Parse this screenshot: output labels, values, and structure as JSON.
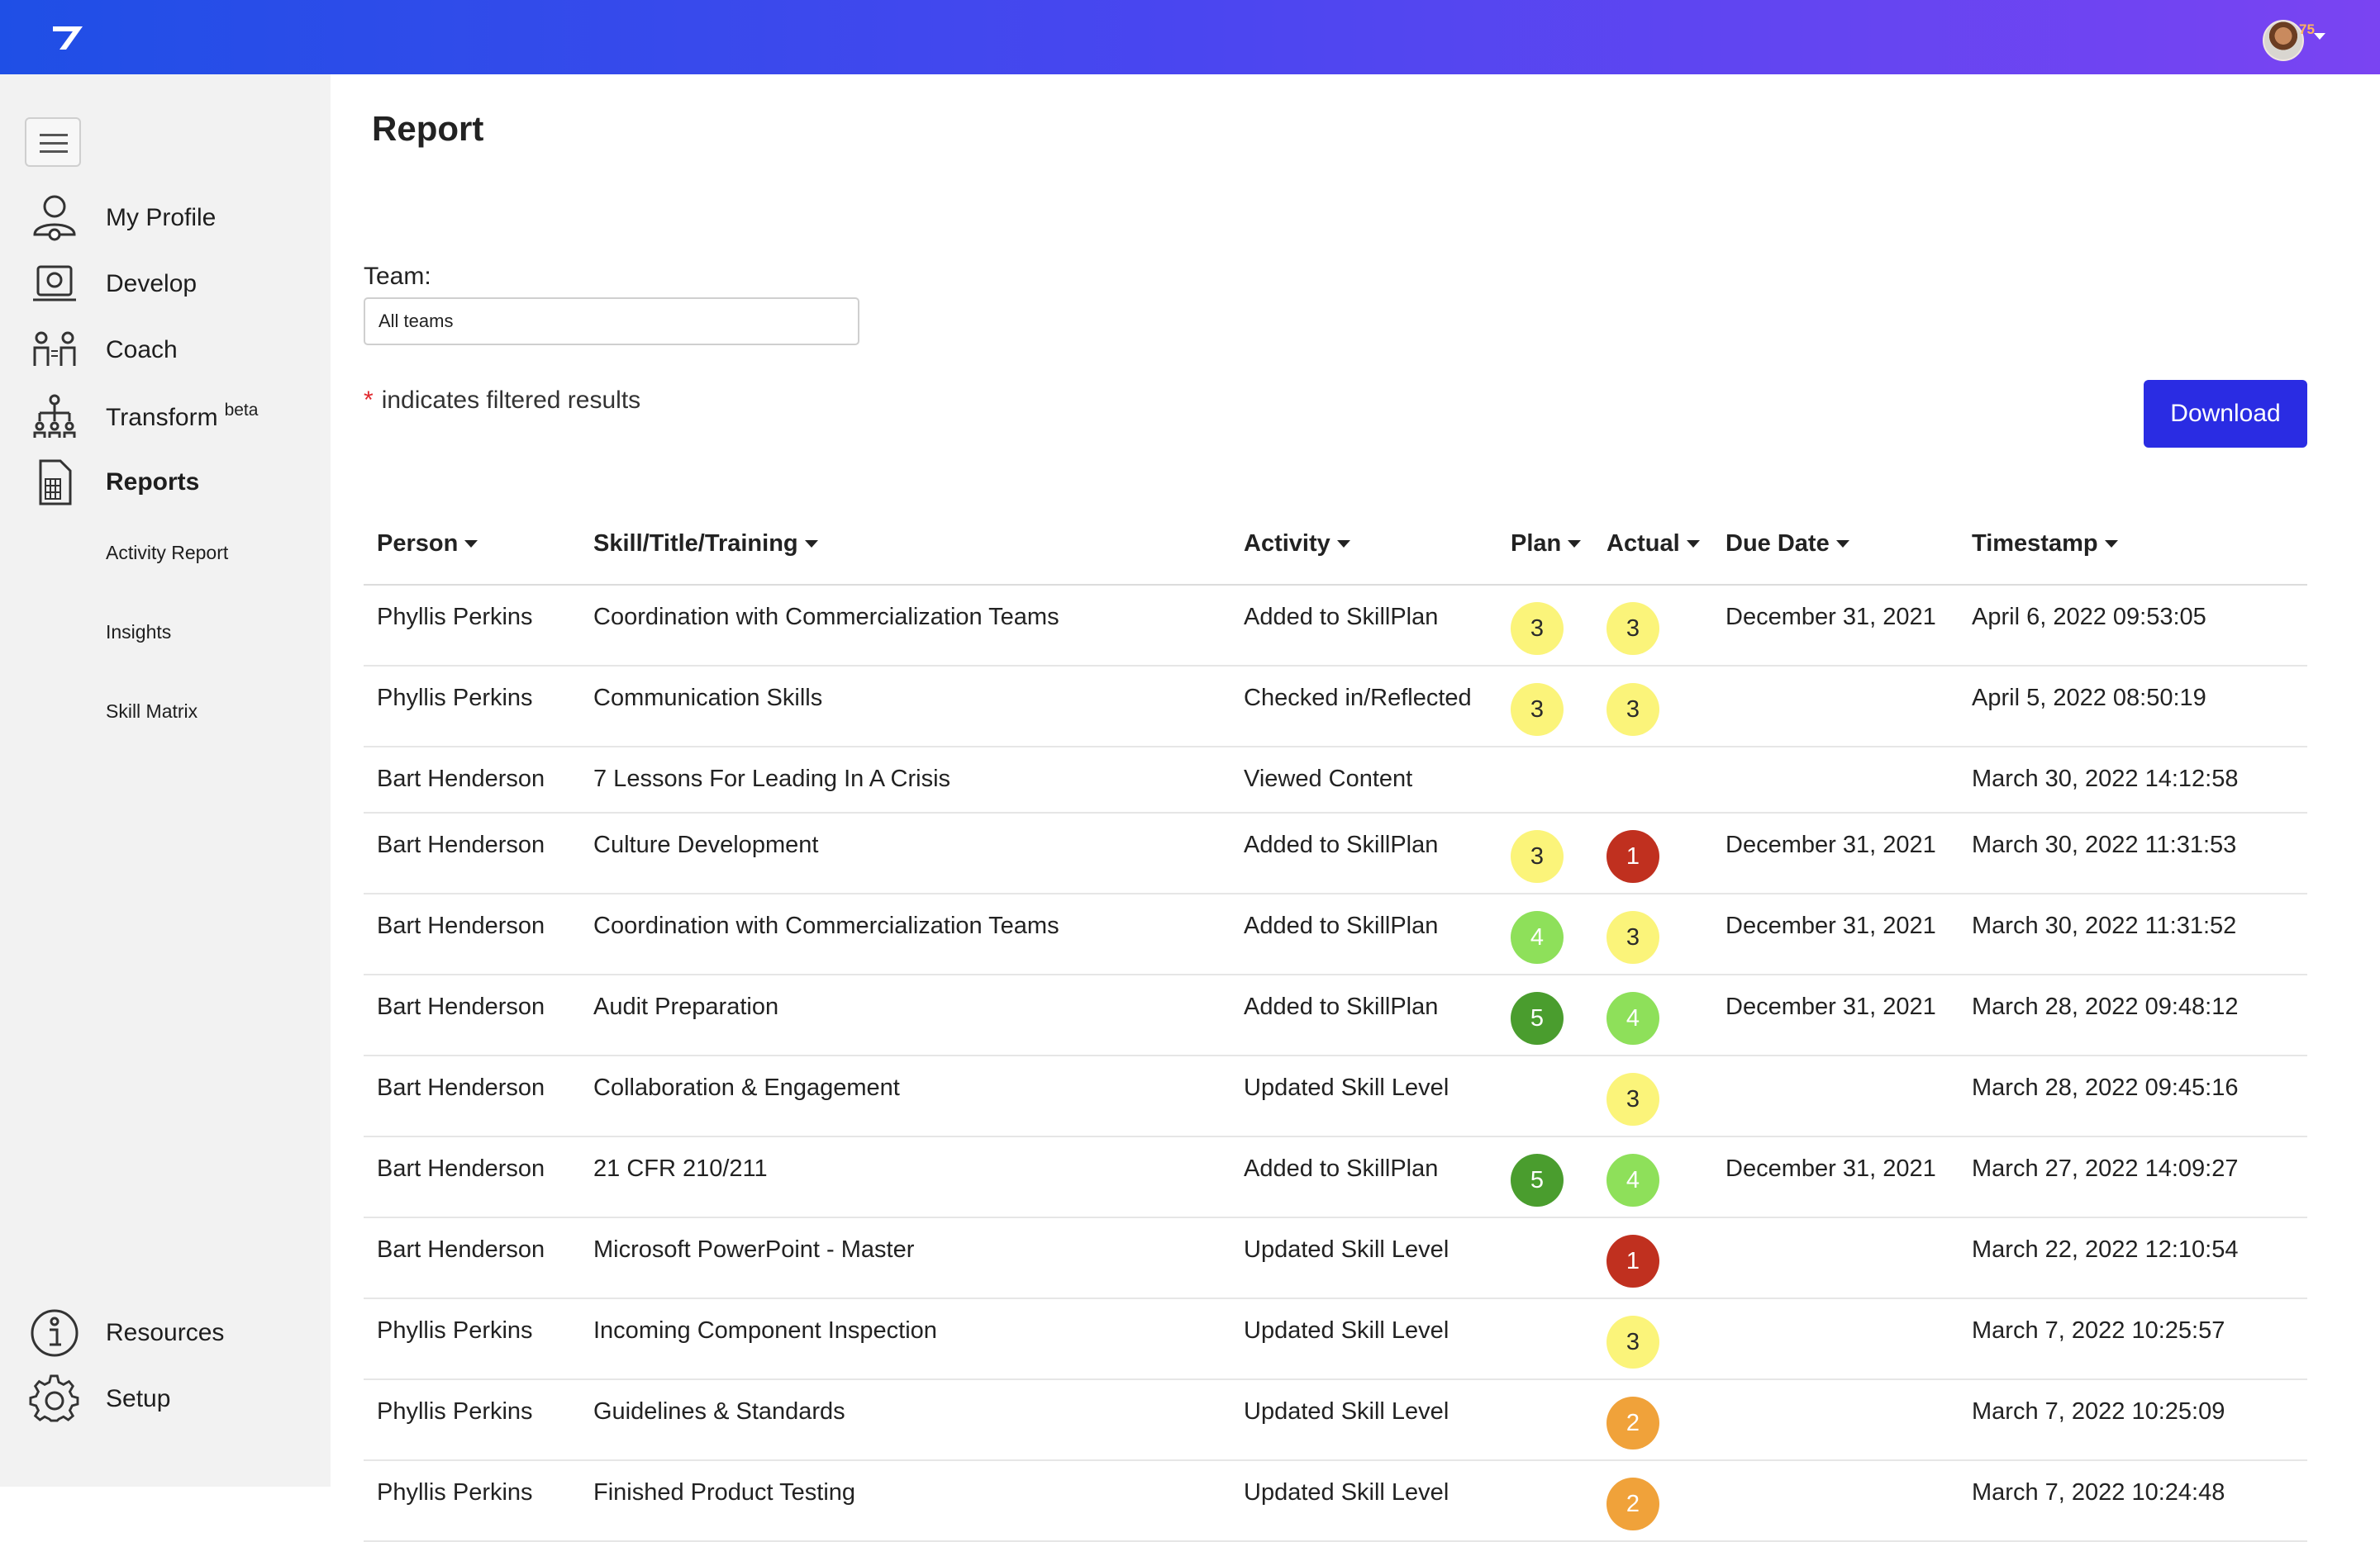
{
  "topbar": {
    "logo_icon": "brand-logo-icon",
    "avatar_badge": "75",
    "colors": {
      "gradient_start": "#1f4fe6",
      "gradient_end": "#7a44f2"
    }
  },
  "sidebar": {
    "items": [
      {
        "label": "My Profile",
        "icon": "profile-icon"
      },
      {
        "label": "Develop",
        "icon": "develop-icon"
      },
      {
        "label": "Coach",
        "icon": "coach-icon"
      },
      {
        "label": "Transform",
        "icon": "transform-icon",
        "sup": "beta"
      },
      {
        "label": "Reports",
        "icon": "reports-icon",
        "active": true
      }
    ],
    "sub_items": [
      "Activity Report",
      "Insights",
      "Skill Matrix"
    ],
    "bottom_items": [
      {
        "label": "Resources",
        "icon": "resources-icon"
      },
      {
        "label": "Setup",
        "icon": "setup-icon"
      }
    ]
  },
  "main": {
    "title": "Report",
    "team_label": "Team:",
    "team_value": "All teams",
    "filter_star": "*",
    "filter_note": "indicates filtered results",
    "download_label": "Download"
  },
  "table": {
    "headers": [
      "Person",
      "Skill/Title/Training",
      "Activity",
      "Plan",
      "Actual",
      "Due Date",
      "Timestamp"
    ],
    "rows": [
      {
        "person": "Phyllis Perkins",
        "skill": "Coordination with Commercialization Teams",
        "activity": "Added to SkillPlan",
        "plan": "3",
        "actual": "3",
        "due": "December 31, 2021",
        "timestamp": "April 6, 2022 09:53:05"
      },
      {
        "person": "Phyllis Perkins",
        "skill": "Communication Skills",
        "activity": "Checked in/Reflected",
        "plan": "3",
        "actual": "3",
        "due": "",
        "timestamp": "April 5, 2022 08:50:19"
      },
      {
        "person": "Bart Henderson",
        "skill": "7 Lessons For Leading In A Crisis",
        "activity": "Viewed Content",
        "plan": "",
        "actual": "",
        "due": "",
        "timestamp": "March 30, 2022 14:12:58"
      },
      {
        "person": "Bart Henderson",
        "skill": "Culture Development",
        "activity": "Added to SkillPlan",
        "plan": "3",
        "actual": "1",
        "due": "December 31, 2021",
        "timestamp": "March 30, 2022 11:31:53"
      },
      {
        "person": "Bart Henderson",
        "skill": "Coordination with Commercialization Teams",
        "activity": "Added to SkillPlan",
        "plan": "4",
        "actual": "3",
        "due": "December 31, 2021",
        "timestamp": "March 30, 2022 11:31:52"
      },
      {
        "person": "Bart Henderson",
        "skill": "Audit Preparation",
        "activity": "Added to SkillPlan",
        "plan": "5",
        "actual": "4",
        "due": "December 31, 2021",
        "timestamp": "March 28, 2022 09:48:12"
      },
      {
        "person": "Bart Henderson",
        "skill": "Collaboration & Engagement",
        "activity": "Updated Skill Level",
        "plan": "",
        "actual": "3",
        "due": "",
        "timestamp": "March 28, 2022 09:45:16"
      },
      {
        "person": "Bart Henderson",
        "skill": "21 CFR 210/211",
        "activity": "Added to SkillPlan",
        "plan": "5",
        "actual": "4",
        "due": "December 31, 2021",
        "timestamp": "March 27, 2022 14:09:27"
      },
      {
        "person": "Bart Henderson",
        "skill": "Microsoft PowerPoint - Master",
        "activity": "Updated Skill Level",
        "plan": "",
        "actual": "1",
        "due": "",
        "timestamp": "March 22, 2022 12:10:54"
      },
      {
        "person": "Phyllis Perkins",
        "skill": "Incoming Component Inspection",
        "activity": "Updated Skill Level",
        "plan": "",
        "actual": "3",
        "due": "",
        "timestamp": "March 7, 2022 10:25:57"
      },
      {
        "person": "Phyllis Perkins",
        "skill": "Guidelines & Standards",
        "activity": "Updated Skill Level",
        "plan": "",
        "actual": "2",
        "due": "",
        "timestamp": "March 7, 2022 10:25:09"
      },
      {
        "person": "Phyllis Perkins",
        "skill": "Finished Product Testing",
        "activity": "Updated Skill Level",
        "plan": "",
        "actual": "2",
        "due": "",
        "timestamp": "March 7, 2022 10:24:48"
      }
    ],
    "level_colors": {
      "1": {
        "bg": "#c0301f",
        "fg": "#ffffff"
      },
      "2": {
        "bg": "#f0a23a",
        "fg": "#ffffff"
      },
      "3": {
        "bg": "#fbf47a",
        "fg": "#2b2b2b"
      },
      "4": {
        "bg": "#8ee05a",
        "fg": "#ffffff"
      },
      "5": {
        "bg": "#4a9d2e",
        "fg": "#ffffff"
      }
    }
  }
}
